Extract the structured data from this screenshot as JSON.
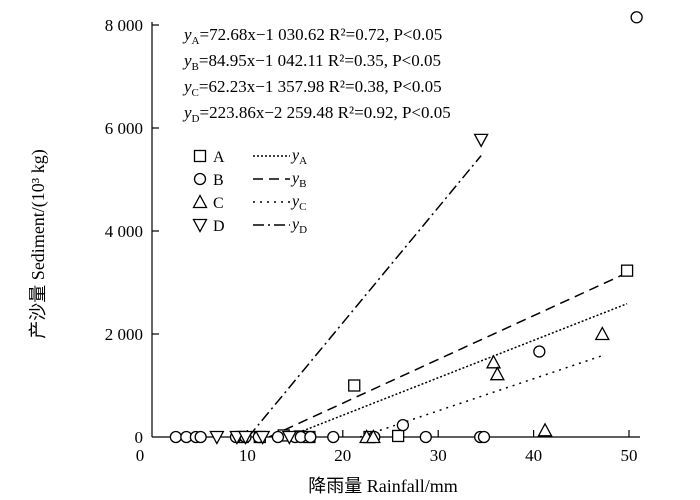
{
  "chart_data": {
    "type": "scatter",
    "xlabel": "降雨量 Rainfall/mm",
    "ylabel": "产沙量 Sediment/(10³ kg)",
    "xlim": [
      0,
      52
    ],
    "ylim": [
      0,
      8200
    ],
    "x_ticks": [
      {
        "value": 0,
        "label": "0"
      },
      {
        "value": 10,
        "label": "10"
      },
      {
        "value": 20,
        "label": "20"
      },
      {
        "value": 30,
        "label": "30"
      },
      {
        "value": 40,
        "label": "40"
      },
      {
        "value": 50,
        "label": "50"
      }
    ],
    "y_ticks": [
      {
        "value": 0,
        "label": "0"
      },
      {
        "value": 2000,
        "label": "2 000"
      },
      {
        "value": 4000,
        "label": "4 000"
      },
      {
        "value": 6000,
        "label": "6 000"
      },
      {
        "value": 8000,
        "label": "8 000"
      }
    ],
    "equations": [
      {
        "id": "A",
        "text": "yA=72.68x−1 030.62 R²=0.72, P<0.05"
      },
      {
        "id": "B",
        "text": "yB=84.95x−1 042.11 R²=0.35, P<0.05"
      },
      {
        "id": "C",
        "text": "yC=62.23x−1 357.98 R²=0.38, P<0.05"
      },
      {
        "id": "D",
        "text": "yD=223.86x−2 259.48 R²=0.92, P<0.05"
      }
    ],
    "series": [
      {
        "name": "A",
        "marker": "square",
        "points": [
          [
            9.5,
            0
          ],
          [
            11.3,
            0
          ],
          [
            13.8,
            30
          ],
          [
            15.5,
            10
          ],
          [
            16.5,
            0
          ],
          [
            21.2,
            1000
          ],
          [
            22.8,
            0
          ],
          [
            25.8,
            20
          ],
          [
            49.8,
            3230
          ]
        ]
      },
      {
        "name": "B",
        "marker": "circle",
        "points": [
          [
            2.5,
            0
          ],
          [
            3.6,
            0
          ],
          [
            4.6,
            0
          ],
          [
            5.1,
            0
          ],
          [
            8.8,
            0
          ],
          [
            9.8,
            0
          ],
          [
            11.2,
            0
          ],
          [
            13.2,
            0
          ],
          [
            15.0,
            0
          ],
          [
            15.6,
            0
          ],
          [
            16.6,
            0
          ],
          [
            19.0,
            0
          ],
          [
            23.3,
            0
          ],
          [
            26.3,
            230
          ],
          [
            28.7,
            0
          ],
          [
            34.4,
            0
          ],
          [
            34.8,
            0
          ],
          [
            40.6,
            1660
          ],
          [
            50.8,
            8150
          ]
        ]
      },
      {
        "name": "C",
        "marker": "triangle-up",
        "points": [
          [
            22.5,
            0
          ],
          [
            23.2,
            0
          ],
          [
            35.8,
            1450
          ],
          [
            36.2,
            1220
          ],
          [
            41.2,
            130
          ],
          [
            47.2,
            2000
          ]
        ]
      },
      {
        "name": "D",
        "marker": "triangle-down",
        "points": [
          [
            6.8,
            0
          ],
          [
            8.9,
            0
          ],
          [
            9.8,
            0
          ],
          [
            11.6,
            0
          ],
          [
            14.4,
            0
          ],
          [
            34.5,
            5770
          ]
        ]
      }
    ],
    "fit_lines": [
      {
        "name": "yA",
        "dash": "dotted-dense",
        "slope": 72.68,
        "intercept": -1030.62,
        "x_range": [
          14.2,
          49.8
        ]
      },
      {
        "name": "yB",
        "dash": "dashed",
        "slope": 84.95,
        "intercept": -1042.11,
        "x_range": [
          12.3,
          49.8
        ]
      },
      {
        "name": "yC",
        "dash": "dotted",
        "slope": 62.23,
        "intercept": -1357.98,
        "x_range": [
          21.8,
          47.2
        ]
      },
      {
        "name": "yD",
        "dash": "dash-dot",
        "slope": 223.86,
        "intercept": -2259.48,
        "x_range": [
          10.1,
          34.5
        ]
      }
    ],
    "legend": {
      "placement": "upper-left",
      "markers": [
        "A",
        "B",
        "C",
        "D"
      ],
      "lines": [
        {
          "name": "y",
          "sub": "A"
        },
        {
          "name": "y",
          "sub": "B"
        },
        {
          "name": "y",
          "sub": "C"
        },
        {
          "name": "y",
          "sub": "D"
        }
      ]
    }
  }
}
